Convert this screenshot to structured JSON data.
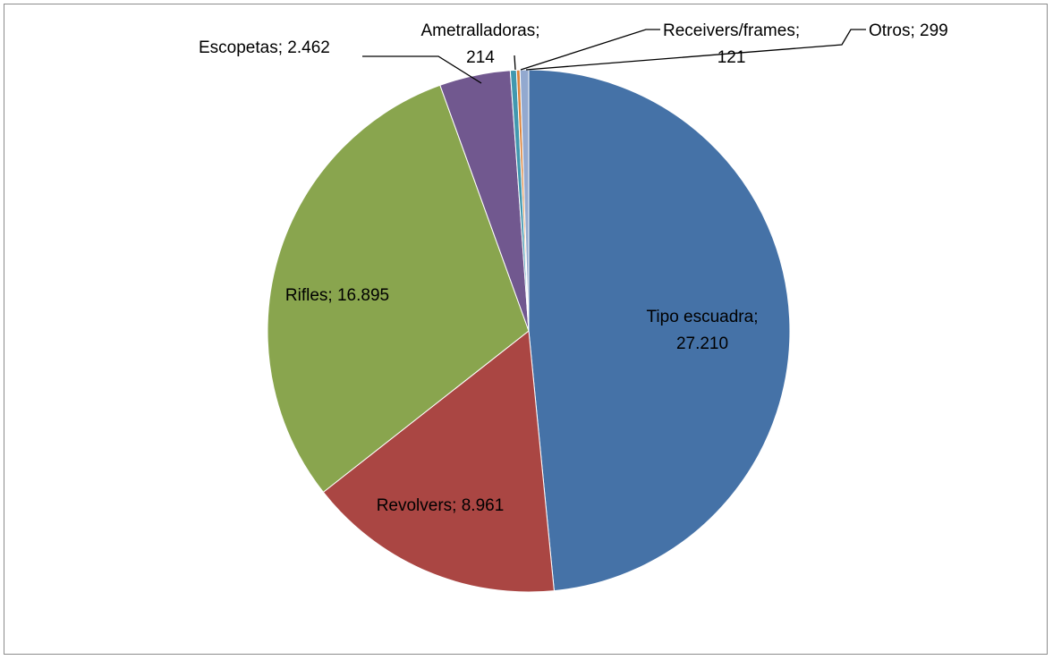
{
  "chart_data": {
    "type": "pie",
    "title": "",
    "slices": [
      {
        "name": "Tipo escuadra",
        "value": 27210,
        "color": "#4572a7",
        "label_lines": [
          "Tipo escuadra;",
          "27.210"
        ]
      },
      {
        "name": "Revolvers",
        "value": 8961,
        "color": "#aa4643",
        "label_lines": [
          "Revolvers; 8.961"
        ]
      },
      {
        "name": "Rifles",
        "value": 16895,
        "color": "#89a54e",
        "label_lines": [
          "Rifles; 16.895"
        ]
      },
      {
        "name": "Escopetas",
        "value": 2462,
        "color": "#71588f",
        "label_lines": [
          "Escopetas; 2.462"
        ]
      },
      {
        "name": "Ametralladoras",
        "value": 214,
        "color": "#4198af",
        "label_lines": [
          "Ametralladoras;",
          "214"
        ]
      },
      {
        "name": "Receivers/frames",
        "value": 121,
        "color": "#db843d",
        "label_lines": [
          "Receivers/frames;",
          "121"
        ]
      },
      {
        "name": "Otros",
        "value": 299,
        "color": "#93a9cf",
        "label_lines": [
          "Otros; 299"
        ]
      }
    ],
    "legend": "none",
    "labels": "name; value"
  }
}
